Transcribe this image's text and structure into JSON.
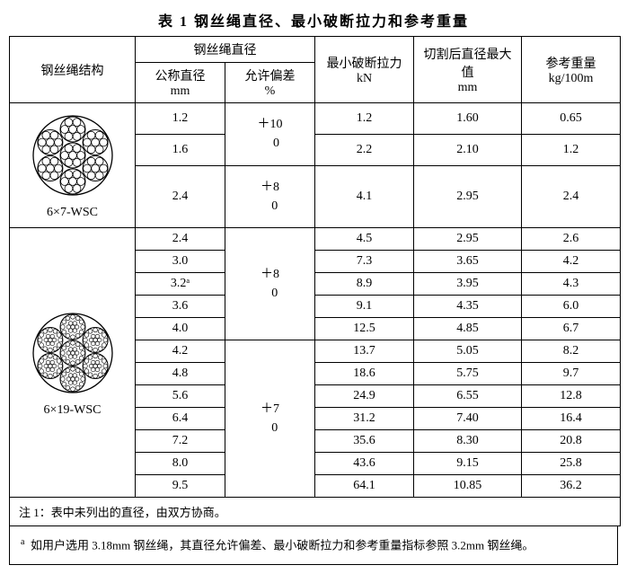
{
  "title": "表 1  钢丝绳直径、最小破断拉力和参考重量",
  "headers": {
    "structure": "钢丝绳结构",
    "diameter_group": "钢丝绳直径",
    "nominal_dia": "公称直径",
    "nominal_dia_unit": "mm",
    "tolerance": "允许偏差",
    "tolerance_unit": "%",
    "min_break": "最小破断拉力",
    "min_break_unit": "kN",
    "max_cut_dia": "切割后直径最大值",
    "max_cut_dia_unit": "mm",
    "ref_weight": "参考重量",
    "ref_weight_unit": "kg/100m"
  },
  "groups": [
    {
      "label": "6×7-WSC",
      "diagram": "6x7",
      "rows": [
        {
          "dia": "1.2",
          "tol": "＋10\n    0",
          "break": "1.2",
          "cut": "1.60",
          "wt": "0.65"
        },
        {
          "dia": "1.6",
          "tol": null,
          "break": "2.2",
          "cut": "2.10",
          "wt": "1.2"
        },
        {
          "dia": "2.4",
          "tol": "＋8\n   0",
          "break": "4.1",
          "cut": "2.95",
          "wt": "2.4"
        }
      ],
      "tol_spans": [
        2,
        1
      ]
    },
    {
      "label": "6×19-WSC",
      "diagram": "6x19",
      "rows": [
        {
          "dia": "2.4",
          "tol": "＋8\n   0",
          "break": "4.5",
          "cut": "2.95",
          "wt": "2.6"
        },
        {
          "dia": "3.0",
          "tol": null,
          "break": "7.3",
          "cut": "3.65",
          "wt": "4.2"
        },
        {
          "dia": "3.2ᵃ",
          "tol": null,
          "break": "8.9",
          "cut": "3.95",
          "wt": "4.3"
        },
        {
          "dia": "3.6",
          "tol": null,
          "break": "9.1",
          "cut": "4.35",
          "wt": "6.0"
        },
        {
          "dia": "4.0",
          "tol": null,
          "break": "12.5",
          "cut": "4.85",
          "wt": "6.7"
        },
        {
          "dia": "4.2",
          "tol": "＋7\n   0",
          "break": "13.7",
          "cut": "5.05",
          "wt": "8.2"
        },
        {
          "dia": "4.8",
          "tol": null,
          "break": "18.6",
          "cut": "5.75",
          "wt": "9.7"
        },
        {
          "dia": "5.6",
          "tol": null,
          "break": "24.9",
          "cut": "6.55",
          "wt": "12.8"
        },
        {
          "dia": "6.4",
          "tol": null,
          "break": "31.2",
          "cut": "7.40",
          "wt": "16.4"
        },
        {
          "dia": "7.2",
          "tol": null,
          "break": "35.6",
          "cut": "8.30",
          "wt": "20.8"
        },
        {
          "dia": "8.0",
          "tol": null,
          "break": "43.6",
          "cut": "9.15",
          "wt": "25.8"
        },
        {
          "dia": "9.5",
          "tol": null,
          "break": "64.1",
          "cut": "10.85",
          "wt": "36.2"
        }
      ],
      "tol_spans": [
        5,
        7
      ]
    }
  ],
  "note": "注 1：表中未列出的直径，由双方协商。",
  "footnote_marker": "a",
  "footnote": "如用户选用 3.18mm 钢丝绳，其直径允许偏差、最小破断拉力和参考重量指标参照 3.2mm 钢丝绳。",
  "style": {
    "border_color": "#000000",
    "bg_color": "#ffffff",
    "text_color": "#000000",
    "font_family": "SimSun",
    "title_fontsize": 16,
    "body_fontsize": 14,
    "diagram": {
      "outer_radius": 44,
      "strand_radius": 14,
      "wire_radius_7": 4.4,
      "wire_radius_19_outer": 2.4,
      "wire_radius_19_inner": 2.2,
      "stroke": "#000000",
      "fill": "#ffffff"
    }
  }
}
